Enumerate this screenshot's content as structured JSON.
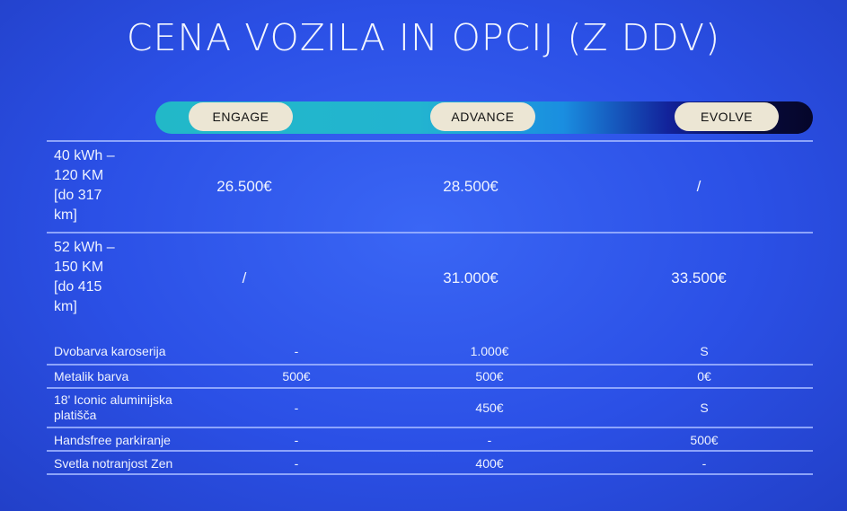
{
  "title": "CENA VOZILA IN OPCIJ (Z DDV)",
  "trims": [
    "ENGAGE",
    "ADVANCE",
    "EVOLVE"
  ],
  "battery_rows": [
    {
      "label": [
        "40 kWh –",
        "120 KM",
        "[do 317",
        "km]"
      ],
      "values": [
        "26.500€",
        "28.500€",
        "/"
      ]
    },
    {
      "label": [
        "52 kWh –",
        "150 KM",
        "[do 415",
        "km]"
      ],
      "values": [
        "/",
        "31.000€",
        "33.500€"
      ]
    }
  ],
  "option_rows": [
    {
      "label": [
        "Dvobarva karoserija"
      ],
      "values": [
        "-",
        "1.000€",
        "S"
      ]
    },
    {
      "label": [
        "Metalik barva"
      ],
      "values": [
        "500€",
        "500€",
        "0€"
      ]
    },
    {
      "label": [
        "18' Iconic aluminijska",
        "platišča"
      ],
      "values": [
        "-",
        "450€",
        "S"
      ]
    },
    {
      "label": [
        "Handsfree parkiranje"
      ],
      "values": [
        "-",
        "-",
        "500€"
      ]
    },
    {
      "label": [
        "Svetla notranjost Zen"
      ],
      "values": [
        "-",
        "400€",
        "-"
      ]
    }
  ],
  "colors": {
    "background": "#2b50e6",
    "pill": "#ece6d4",
    "bar_start": "#22b8c8",
    "bar_end": "#05062a"
  }
}
